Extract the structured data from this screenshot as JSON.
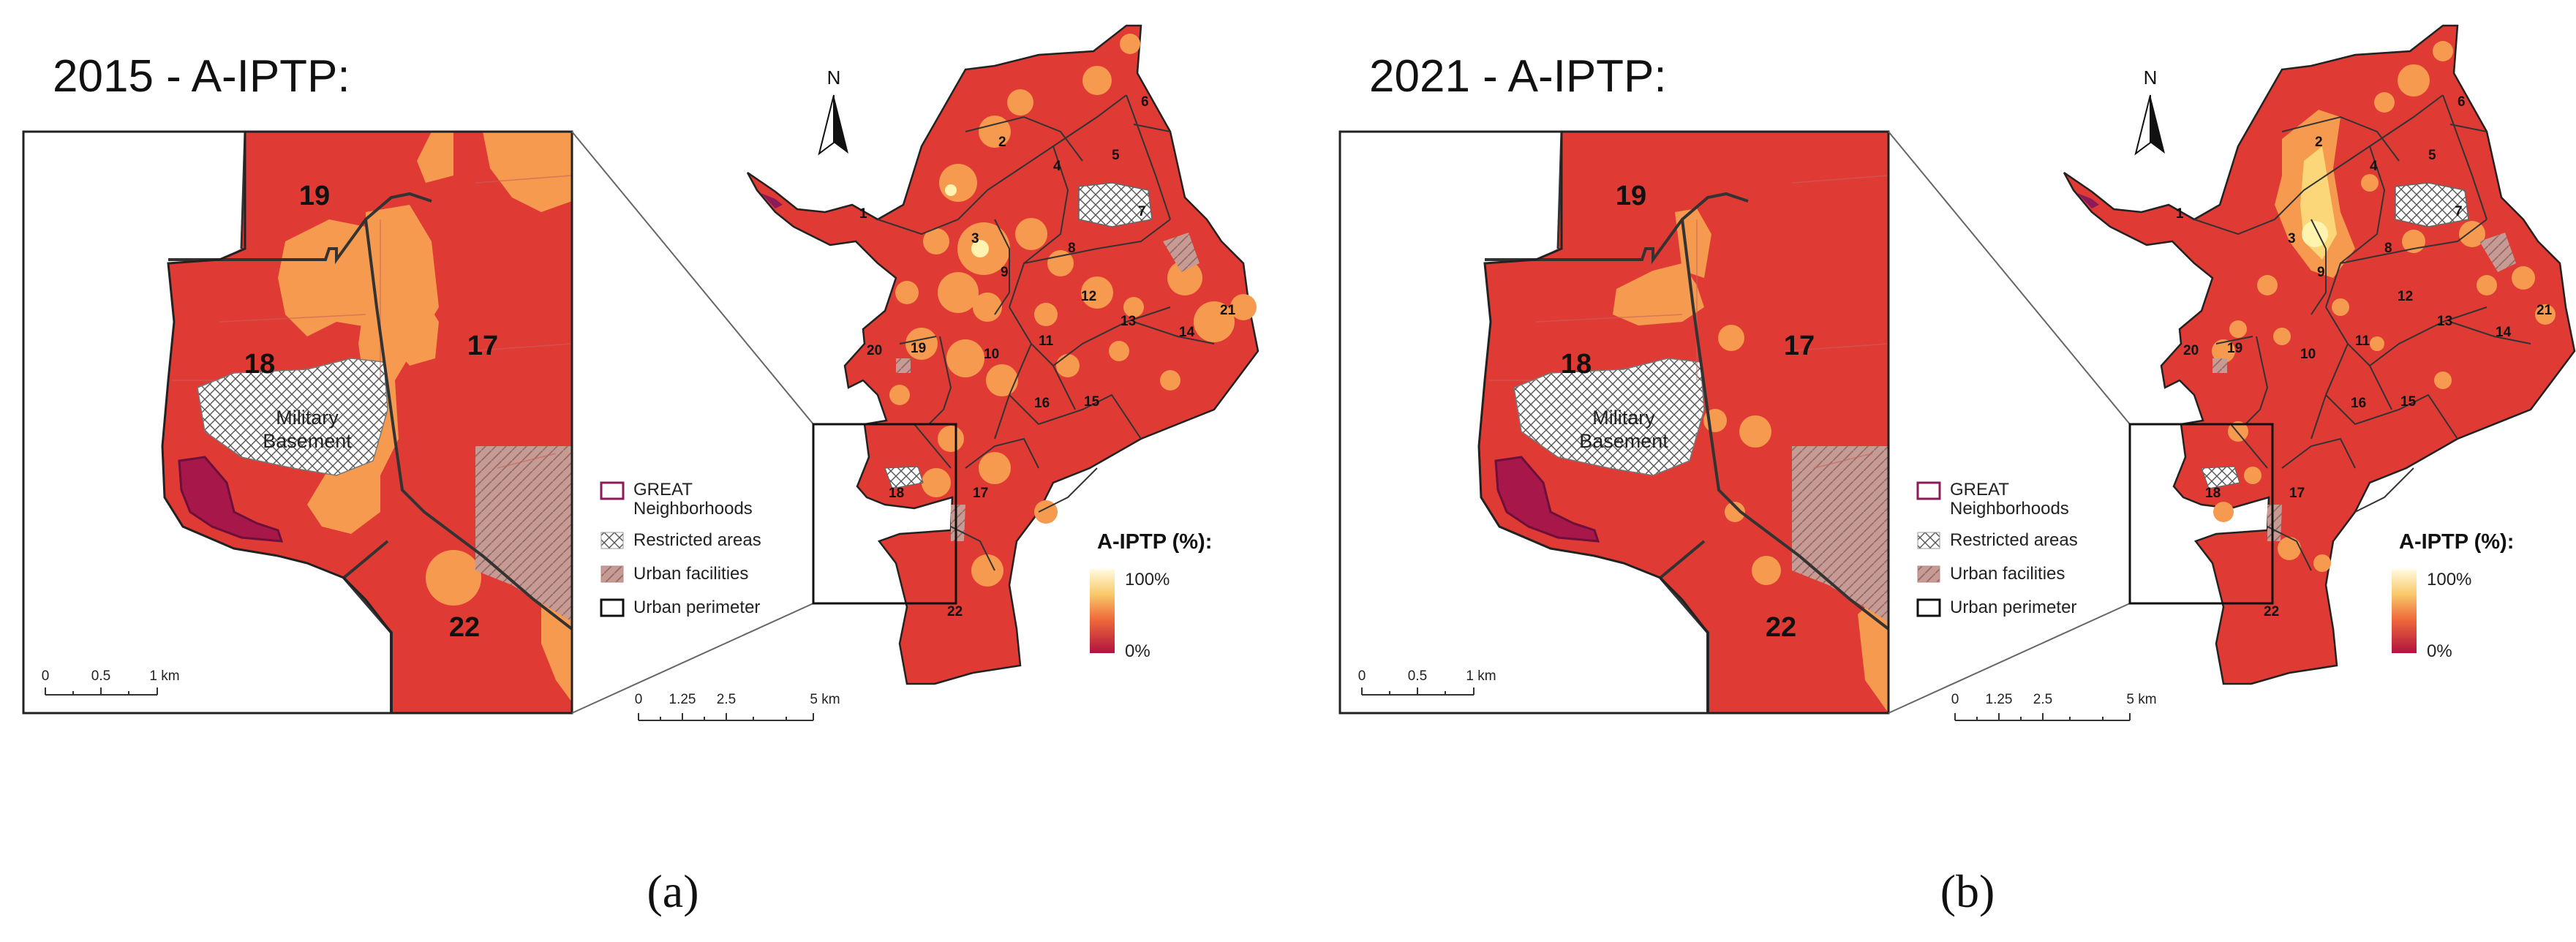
{
  "panels": [
    {
      "id": "a",
      "title": "2015 - A-IPTP:",
      "caption": "(a)",
      "north_label": "N",
      "neighborhoods": [
        "1",
        "2",
        "3",
        "4",
        "5",
        "6",
        "7",
        "8",
        "9",
        "10",
        "11",
        "12",
        "13",
        "14",
        "15",
        "16",
        "17",
        "18",
        "19",
        "20",
        "21",
        "22"
      ],
      "inset": {
        "labels": [
          "19",
          "18",
          "17",
          "22"
        ],
        "military_label_line1": "Military",
        "military_label_line2": "Basement",
        "scale": [
          "0",
          "0.5",
          "1 km"
        ]
      },
      "main_scale": [
        "0",
        "1.25",
        "2.5",
        "5 km"
      ]
    },
    {
      "id": "b",
      "title": "2021 - A-IPTP:",
      "caption": "(b)",
      "north_label": "N",
      "neighborhoods": [
        "1",
        "2",
        "3",
        "4",
        "5",
        "6",
        "7",
        "8",
        "9",
        "10",
        "11",
        "12",
        "13",
        "14",
        "15",
        "16",
        "17",
        "18",
        "19",
        "20",
        "21",
        "22"
      ],
      "inset": {
        "labels": [
          "19",
          "18",
          "17",
          "22"
        ],
        "military_label_line1": "Military",
        "military_label_line2": "Basement",
        "scale": [
          "0",
          "0.5",
          "1 km"
        ]
      },
      "main_scale": [
        "0",
        "1.25",
        "2.5",
        "5 km"
      ]
    }
  ],
  "legend": {
    "great_line1": "GREAT",
    "great_line2": "Neighborhoods",
    "restricted": "Restricted areas",
    "facilities": "Urban facilities",
    "perimeter": "Urban perimeter",
    "ramp_title": "A-IPTP (%):",
    "ramp_max": "100%",
    "ramp_min": "0%"
  },
  "colors": {
    "low": "#e03a34",
    "mid": "#f59a4e",
    "high": "#fff3b0",
    "min": "#b3123f",
    "great": "#8b1a5a",
    "facility": "#b58a8a"
  }
}
